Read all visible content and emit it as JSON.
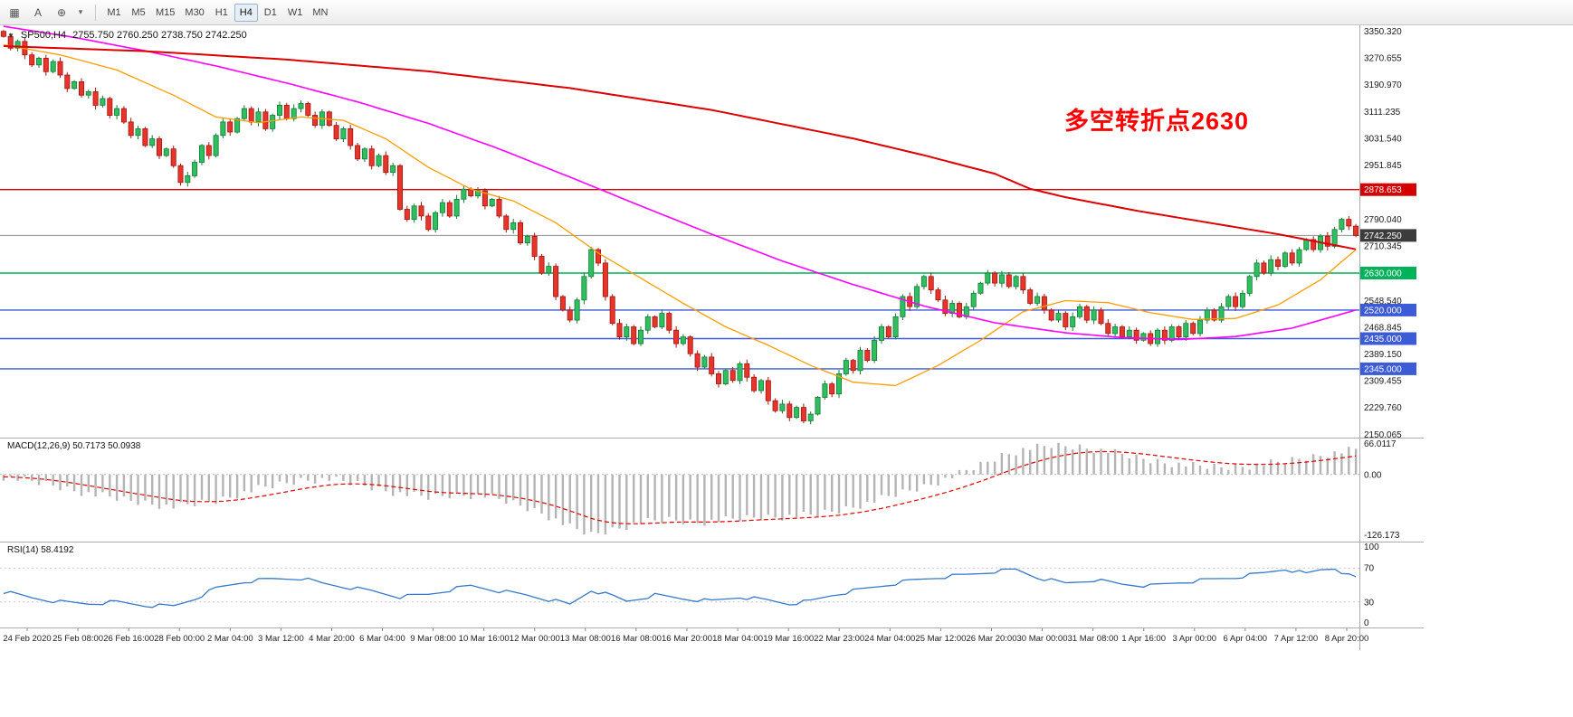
{
  "toolbar": {
    "tools": [
      {
        "name": "chart-grid-icon",
        "glyph": "▦"
      },
      {
        "name": "text-tool-icon",
        "glyph": "A"
      },
      {
        "name": "crosshair-tool-icon",
        "glyph": "⊕"
      },
      {
        "name": "tools-dropdown-icon",
        "glyph": "▾"
      }
    ],
    "timeframes": [
      "M1",
      "M5",
      "M15",
      "M30",
      "H1",
      "H4",
      "D1",
      "W1",
      "MN"
    ],
    "active": "H4"
  },
  "chart_data": {
    "type": "candlestick",
    "title_dropdown": "▼",
    "title_symbol": "SP500,H4",
    "title_ohlc": "2755.750 2760.250 2738.750 2742.250",
    "ohlc": {
      "open": 2755.75,
      "high": 2760.25,
      "low": 2738.75,
      "close": 2742.25
    },
    "annotation": {
      "text": "多空转折点2630",
      "color": "#ff0000"
    },
    "colors": {
      "up_fill": "#2fbf5f",
      "up_stroke": "#157a38",
      "down_fill": "#e8352b",
      "down_stroke": "#a11610"
    },
    "price_axis": {
      "range": [
        2140,
        3368
      ],
      "ticks": [
        {
          "label": "3350.320",
          "value": 3350.32
        },
        {
          "label": "3270.655",
          "value": 3270.655
        },
        {
          "label": "3190.970",
          "value": 3190.97
        },
        {
          "label": "3111.235",
          "value": 3111.235
        },
        {
          "label": "3031.540",
          "value": 3031.54
        },
        {
          "label": "2951.845",
          "value": 2951.845
        },
        {
          "label": "2790.040",
          "value": 2790.04
        },
        {
          "label": "2710.345",
          "value": 2710.345
        },
        {
          "label": "2548.540",
          "value": 2548.54
        },
        {
          "label": "2468.845",
          "value": 2468.845
        },
        {
          "label": "2389.150",
          "value": 2389.15
        },
        {
          "label": "2309.455",
          "value": 2309.455
        },
        {
          "label": "2229.760",
          "value": 2229.76
        },
        {
          "label": "2150.065",
          "value": 2150.065
        }
      ]
    },
    "hlines": [
      {
        "name": "resistance-line-2878",
        "price": 2878.653,
        "tag": "2878.653",
        "color": "#d40000",
        "tag_bg": "#d40000"
      },
      {
        "name": "current-price-line",
        "price": 2742.25,
        "tag": "2742.250",
        "color": "#909090",
        "tag_bg": "#3c3c3c",
        "current": true
      },
      {
        "name": "pivot-line-2630",
        "price": 2630,
        "tag": "2630.000",
        "color": "#00b25a",
        "tag_bg": "#00b25a"
      },
      {
        "name": "support-line-2520",
        "price": 2520,
        "tag": "2520.000",
        "color": "#3c5bd6",
        "tag_bg": "#3c5bd6"
      },
      {
        "name": "support-line-2435",
        "price": 2435,
        "tag": "2435.000",
        "color": "#3c5bd6",
        "tag_bg": "#3c5bd6"
      },
      {
        "name": "support-line-2345",
        "price": 2345,
        "tag": "2345.000",
        "color": "#3c5bd6",
        "tag_bg": "#3c5bd6"
      }
    ],
    "candles_close": [
      3335,
      3300,
      3320,
      3280,
      3250,
      3270,
      3230,
      3260,
      3220,
      3180,
      3200,
      3160,
      3170,
      3130,
      3150,
      3100,
      3120,
      3080,
      3040,
      3060,
      3010,
      3030,
      2980,
      3000,
      2950,
      2900,
      2920,
      2960,
      3010,
      2980,
      3040,
      3080,
      3050,
      3090,
      3120,
      3080,
      3110,
      3060,
      3100,
      3130,
      3090,
      3120,
      3135,
      3100,
      3070,
      3110,
      3070,
      3030,
      3060,
      3010,
      2970,
      3000,
      2950,
      2980,
      2930,
      2950,
      2820,
      2790,
      2830,
      2800,
      2760,
      2810,
      2840,
      2800,
      2850,
      2880,
      2860,
      2875,
      2830,
      2850,
      2800,
      2760,
      2780,
      2720,
      2740,
      2680,
      2630,
      2650,
      2560,
      2520,
      2490,
      2550,
      2620,
      2700,
      2660,
      2560,
      2480,
      2440,
      2470,
      2420,
      2460,
      2500,
      2470,
      2510,
      2460,
      2420,
      2440,
      2390,
      2350,
      2380,
      2330,
      2300,
      2340,
      2310,
      2360,
      2320,
      2280,
      2310,
      2250,
      2220,
      2240,
      2200,
      2230,
      2190,
      2210,
      2260,
      2300,
      2270,
      2330,
      2370,
      2340,
      2400,
      2370,
      2430,
      2470,
      2440,
      2500,
      2560,
      2530,
      2590,
      2620,
      2580,
      2550,
      2510,
      2540,
      2500,
      2530,
      2570,
      2600,
      2630,
      2600,
      2625,
      2590,
      2620,
      2580,
      2540,
      2560,
      2520,
      2490,
      2510,
      2470,
      2500,
      2530,
      2490,
      2520,
      2480,
      2450,
      2470,
      2440,
      2460,
      2430,
      2450,
      2420,
      2460,
      2430,
      2470,
      2440,
      2480,
      2450,
      2490,
      2520,
      2490,
      2530,
      2560,
      2530,
      2570,
      2620,
      2660,
      2630,
      2670,
      2650,
      2690,
      2660,
      2700,
      2730,
      2700,
      2740,
      2710,
      2760,
      2790,
      2770,
      2742.25
    ],
    "ma": [
      {
        "name": "ma-fast-orange",
        "color": "#ff9c00",
        "width": 1.3,
        "anchors": [
          [
            0,
            3310
          ],
          [
            8,
            3280
          ],
          [
            16,
            3235
          ],
          [
            24,
            3160
          ],
          [
            30,
            3095
          ],
          [
            36,
            3078
          ],
          [
            42,
            3095
          ],
          [
            48,
            3085
          ],
          [
            54,
            3030
          ],
          [
            60,
            2945
          ],
          [
            66,
            2880
          ],
          [
            72,
            2845
          ],
          [
            78,
            2780
          ],
          [
            84,
            2690
          ],
          [
            90,
            2615
          ],
          [
            96,
            2540
          ],
          [
            102,
            2470
          ],
          [
            108,
            2415
          ],
          [
            114,
            2355
          ],
          [
            120,
            2305
          ],
          [
            126,
            2295
          ],
          [
            132,
            2355
          ],
          [
            138,
            2430
          ],
          [
            144,
            2515
          ],
          [
            150,
            2548
          ],
          [
            156,
            2542
          ],
          [
            162,
            2512
          ],
          [
            168,
            2492
          ],
          [
            174,
            2495
          ],
          [
            180,
            2535
          ],
          [
            186,
            2610
          ],
          [
            191,
            2700
          ]
        ]
      },
      {
        "name": "ma-mid-magenta",
        "color": "#ff00ff",
        "width": 1.6,
        "anchors": [
          [
            0,
            3365
          ],
          [
            10,
            3332
          ],
          [
            20,
            3292
          ],
          [
            30,
            3247
          ],
          [
            40,
            3196
          ],
          [
            50,
            3140
          ],
          [
            60,
            3076
          ],
          [
            70,
            3000
          ],
          [
            80,
            2916
          ],
          [
            90,
            2830
          ],
          [
            100,
            2746
          ],
          [
            110,
            2666
          ],
          [
            120,
            2596
          ],
          [
            130,
            2532
          ],
          [
            140,
            2482
          ],
          [
            150,
            2452
          ],
          [
            158,
            2438
          ],
          [
            166,
            2432
          ],
          [
            174,
            2441
          ],
          [
            182,
            2466
          ],
          [
            191,
            2520
          ]
        ]
      },
      {
        "name": "ma-slow-red",
        "color": "#dd0000",
        "width": 2,
        "anchors": [
          [
            0,
            3306
          ],
          [
            20,
            3291
          ],
          [
            40,
            3266
          ],
          [
            60,
            3231
          ],
          [
            80,
            3181
          ],
          [
            100,
            3116
          ],
          [
            120,
            3031
          ],
          [
            130,
            2981
          ],
          [
            140,
            2926
          ],
          [
            145,
            2881
          ],
          [
            150,
            2856
          ],
          [
            160,
            2816
          ],
          [
            170,
            2781
          ],
          [
            180,
            2746
          ],
          [
            191,
            2701
          ]
        ]
      }
    ],
    "time_axis": [
      "24 Feb 2020",
      "25 Feb 08:00",
      "26 Feb 16:00",
      "28 Feb 00:00",
      "2 Mar 04:00",
      "3 Mar 12:00",
      "4 Mar 20:00",
      "6 Mar 04:00",
      "9 Mar 08:00",
      "10 Mar 16:00",
      "12 Mar 00:00",
      "13 Mar 08:00",
      "16 Mar 08:00",
      "16 Mar 20:00",
      "18 Mar 04:00",
      "19 Mar 16:00",
      "22 Mar 23:00",
      "24 Mar 04:00",
      "25 Mar 12:00",
      "26 Mar 20:00",
      "30 Mar 00:00",
      "31 Mar 08:00",
      "1 Apr 16:00",
      "3 Apr 00:00",
      "6 Apr 04:00",
      "7 Apr 12:00",
      "8 Apr 20:00"
    ],
    "macd": {
      "label": "MACD(12,26,9) 50.7173 50.0938",
      "range": [
        -140,
        75
      ],
      "hist_color": "#b4b4b4",
      "signal_color": "#e00000",
      "axis": [
        {
          "label": "66.0117",
          "value": 66.0117
        },
        {
          "label": "0.00",
          "value": 0
        },
        {
          "label": "-126.173",
          "value": -126.173
        }
      ],
      "anchors": [
        [
          0,
          -5
        ],
        [
          6,
          -20
        ],
        [
          12,
          -40
        ],
        [
          18,
          -55
        ],
        [
          24,
          -68
        ],
        [
          30,
          -55
        ],
        [
          36,
          -30
        ],
        [
          42,
          -12
        ],
        [
          46,
          -10
        ],
        [
          50,
          -20
        ],
        [
          56,
          -40
        ],
        [
          60,
          -48
        ],
        [
          64,
          -42
        ],
        [
          68,
          -45
        ],
        [
          72,
          -60
        ],
        [
          76,
          -80
        ],
        [
          80,
          -110
        ],
        [
          83,
          -126
        ],
        [
          86,
          -115
        ],
        [
          90,
          -100
        ],
        [
          94,
          -95
        ],
        [
          98,
          -100
        ],
        [
          102,
          -95
        ],
        [
          106,
          -90
        ],
        [
          110,
          -88
        ],
        [
          114,
          -85
        ],
        [
          118,
          -75
        ],
        [
          122,
          -60
        ],
        [
          126,
          -42
        ],
        [
          130,
          -25
        ],
        [
          134,
          -5
        ],
        [
          138,
          20
        ],
        [
          141,
          40
        ],
        [
          144,
          52
        ],
        [
          148,
          60
        ],
        [
          152,
          58
        ],
        [
          156,
          48
        ],
        [
          160,
          35
        ],
        [
          164,
          25
        ],
        [
          168,
          18
        ],
        [
          172,
          15
        ],
        [
          176,
          18
        ],
        [
          180,
          25
        ],
        [
          184,
          35
        ],
        [
          188,
          45
        ],
        [
          191,
          52
        ]
      ]
    },
    "rsi": {
      "label": "RSI(14) 58.4192",
      "color": "#3579c8",
      "range": [
        0,
        100
      ],
      "axis": [
        {
          "label": "100",
          "value": 100
        },
        {
          "label": "70",
          "value": 70
        },
        {
          "label": "30",
          "value": 30
        },
        {
          "label": "0",
          "value": 0
        }
      ],
      "anchors": [
        [
          0,
          42
        ],
        [
          4,
          35
        ],
        [
          8,
          30
        ],
        [
          12,
          28
        ],
        [
          16,
          30
        ],
        [
          20,
          26
        ],
        [
          24,
          25
        ],
        [
          27,
          34
        ],
        [
          30,
          46
        ],
        [
          34,
          54
        ],
        [
          38,
          57
        ],
        [
          42,
          58
        ],
        [
          45,
          52
        ],
        [
          48,
          48
        ],
        [
          52,
          43
        ],
        [
          56,
          36
        ],
        [
          60,
          39
        ],
        [
          64,
          46
        ],
        [
          66,
          49
        ],
        [
          70,
          43
        ],
        [
          74,
          38
        ],
        [
          78,
          31
        ],
        [
          80,
          27
        ],
        [
          83,
          44
        ],
        [
          86,
          37
        ],
        [
          88,
          31
        ],
        [
          92,
          38
        ],
        [
          96,
          34
        ],
        [
          100,
          31
        ],
        [
          104,
          36
        ],
        [
          108,
          32
        ],
        [
          111,
          28
        ],
        [
          114,
          31
        ],
        [
          117,
          38
        ],
        [
          120,
          43
        ],
        [
          124,
          49
        ],
        [
          128,
          55
        ],
        [
          132,
          59
        ],
        [
          136,
          62
        ],
        [
          140,
          66
        ],
        [
          143,
          68
        ],
        [
          146,
          59
        ],
        [
          150,
          52
        ],
        [
          154,
          56
        ],
        [
          158,
          51
        ],
        [
          162,
          49
        ],
        [
          166,
          53
        ],
        [
          170,
          56
        ],
        [
          174,
          59
        ],
        [
          178,
          64
        ],
        [
          181,
          69
        ],
        [
          184,
          63
        ],
        [
          186,
          68
        ],
        [
          188,
          70
        ],
        [
          190,
          61
        ],
        [
          191,
          58.4
        ]
      ]
    }
  }
}
